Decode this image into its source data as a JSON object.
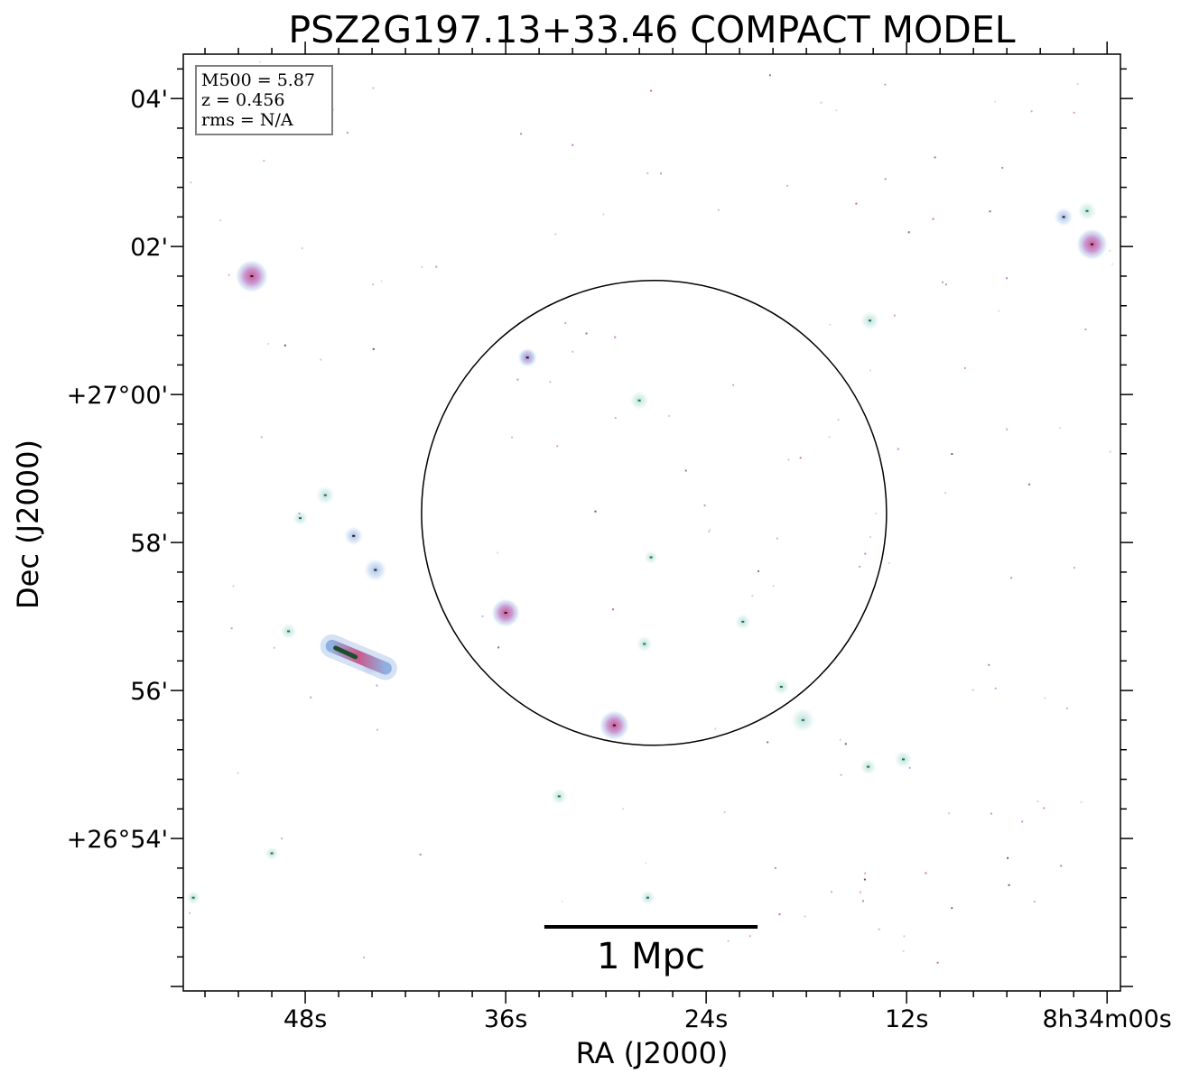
{
  "chart_data": {
    "type": "image",
    "title": "PSZ2G197.13+33.46 COMPACT MODEL",
    "xlabel": "RA (J2000)",
    "ylabel": "Dec (J2000)",
    "x_ticks": [
      {
        "label": "48s",
        "ra_s": 48
      },
      {
        "label": "36s",
        "ra_s": 36
      },
      {
        "label": "24s",
        "ra_s": 24
      },
      {
        "label": "12s",
        "ra_s": 12
      },
      {
        "label": "8h34m00s",
        "ra_s": 0
      }
    ],
    "y_ticks": [
      {
        "label": "04'",
        "dec_arcmin": 1624
      },
      {
        "label": "02'",
        "dec_arcmin": 1622
      },
      {
        "label": "+27°00'",
        "dec_arcmin": 1620
      },
      {
        "label": "58'",
        "dec_arcmin": 1618
      },
      {
        "label": "56'",
        "dec_arcmin": 1616
      },
      {
        "label": "+26°54'",
        "dec_arcmin": 1614
      }
    ],
    "ra_range_s": [
      55.3,
      -0.8
    ],
    "dec_range_arcmin": [
      1611.94,
      1624.6
    ],
    "info_box": [
      "M500 = 5.87",
      "z = 0.456",
      "rms = N/A"
    ],
    "scale_bar": {
      "label": "1 Mpc",
      "length_arcmin": 2.88
    },
    "circle": {
      "ra_s": 27.12,
      "dec_arcmin": 1618.4,
      "radius_arcmin": 3.14
    },
    "sources": [
      {
        "ra_s": 51.2,
        "dec_arcmin": 1621.6,
        "r": 0.23,
        "color": "#c95a8c"
      },
      {
        "ra_s": 34.7,
        "dec_arcmin": 1620.5,
        "r": 0.14,
        "color": "#b76fc0"
      },
      {
        "ra_s": 28.0,
        "dec_arcmin": 1619.92,
        "r": 0.14,
        "color": "#a8dcd2"
      },
      {
        "ra_s": 14.2,
        "dec_arcmin": 1621.0,
        "r": 0.14,
        "color": "#a8dcd2"
      },
      {
        "ra_s": 2.6,
        "dec_arcmin": 1622.4,
        "r": 0.14,
        "color": "#8fb0e0"
      },
      {
        "ra_s": 1.2,
        "dec_arcmin": 1622.48,
        "r": 0.14,
        "color": "#a8dcd2"
      },
      {
        "ra_s": 0.9,
        "dec_arcmin": 1622.03,
        "r": 0.22,
        "color": "#c95a8c"
      },
      {
        "ra_s": 46.8,
        "dec_arcmin": 1618.64,
        "r": 0.14,
        "color": "#a8dcd2"
      },
      {
        "ra_s": 48.3,
        "dec_arcmin": 1618.33,
        "r": 0.11,
        "color": "#a8dcd2"
      },
      {
        "ra_s": 45.1,
        "dec_arcmin": 1618.09,
        "r": 0.14,
        "color": "#8fb0e0"
      },
      {
        "ra_s": 43.8,
        "dec_arcmin": 1617.63,
        "r": 0.17,
        "color": "#8fb0e0"
      },
      {
        "ra_s": 36.0,
        "dec_arcmin": 1617.05,
        "r": 0.2,
        "color": "#c95a8c"
      },
      {
        "ra_s": 27.3,
        "dec_arcmin": 1617.8,
        "r": 0.1,
        "color": "#a8dcd2"
      },
      {
        "ra_s": 21.8,
        "dec_arcmin": 1616.93,
        "r": 0.12,
        "color": "#a8dcd2"
      },
      {
        "ra_s": 27.7,
        "dec_arcmin": 1616.63,
        "r": 0.12,
        "color": "#a8dcd2"
      },
      {
        "ra_s": 49.0,
        "dec_arcmin": 1616.8,
        "r": 0.12,
        "color": "#a8dcd2"
      },
      {
        "ra_s": 44.1,
        "dec_arcmin": 1616.33,
        "r": 0.14,
        "color": "#8fb0e0"
      },
      {
        "ra_s": 19.5,
        "dec_arcmin": 1616.05,
        "r": 0.12,
        "color": "#a8dcd2"
      },
      {
        "ra_s": 18.2,
        "dec_arcmin": 1615.6,
        "r": 0.18,
        "color": "#a8dcd2"
      },
      {
        "ra_s": 29.5,
        "dec_arcmin": 1615.53,
        "r": 0.21,
        "color": "#c95a8c"
      },
      {
        "ra_s": 12.2,
        "dec_arcmin": 1615.07,
        "r": 0.13,
        "color": "#a8dcd2"
      },
      {
        "ra_s": 14.3,
        "dec_arcmin": 1614.97,
        "r": 0.12,
        "color": "#a8dcd2"
      },
      {
        "ra_s": 32.8,
        "dec_arcmin": 1614.57,
        "r": 0.12,
        "color": "#a8dcd2"
      },
      {
        "ra_s": 50.0,
        "dec_arcmin": 1613.8,
        "r": 0.1,
        "color": "#a8dcd2"
      },
      {
        "ra_s": 27.5,
        "dec_arcmin": 1613.2,
        "r": 0.11,
        "color": "#a8dcd2"
      },
      {
        "ra_s": 54.7,
        "dec_arcmin": 1613.2,
        "r": 0.1,
        "color": "#a8dcd2"
      }
    ],
    "elongated_source": {
      "ra_s_from": 46.4,
      "dec_from": 1616.6,
      "ra_s_to": 43.2,
      "dec_to": 1616.3,
      "color": "#c95a8c"
    },
    "grid": false
  }
}
